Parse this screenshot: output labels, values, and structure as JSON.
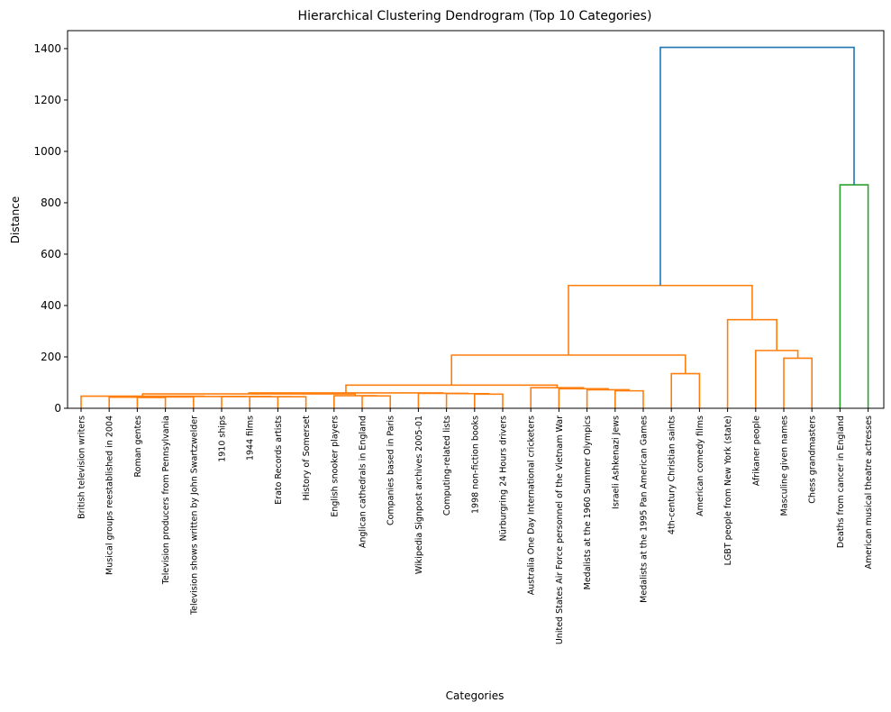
{
  "chart_data": {
    "type": "dendrogram",
    "title": "Hierarchical Clustering Dendrogram (Top 10 Categories)",
    "xlabel": "Categories",
    "ylabel": "Distance",
    "ylim": [
      0,
      1470
    ],
    "yticks": [
      0,
      200,
      400,
      600,
      800,
      1000,
      1200,
      1400
    ],
    "grid": false,
    "leaves": [
      "British television writers",
      "Musical groups reestablished in 2004",
      "Roman gentes",
      "Television producers from Pennsylvania",
      "Television shows written by John Swartzwelder",
      "1910 ships",
      "1944 films",
      "Erato Records artists",
      "History of Somerset",
      "English snooker players",
      "Anglican cathedrals in England",
      "Companies based in Paris",
      "Wikipedia Signpost archives 2005-01",
      "Computing-related lists",
      "1998 non-fiction books",
      "Nürburgring 24 Hours drivers",
      "Australia One Day International cricketers",
      "United States Air Force personnel of the Vietnam War",
      "Medalists at the 1960 Summer Olympics",
      "Israeli Ashkenazi Jews",
      "Medalists at the 1995 Pan American Games",
      "4th-century Christian saints",
      "American comedy films",
      "LGBT people from New York (state)",
      "Afrikaner people",
      "Masculine given names",
      "Chess grandmasters",
      "Deaths from cancer in England",
      "American musical theatre actresses"
    ],
    "merges": [
      {
        "left": 2,
        "right": 3,
        "height": 42,
        "color": "#ff7f0e"
      },
      {
        "left": 1,
        "right": 29,
        "height": 43,
        "color": "#ff7f0e"
      },
      {
        "left": 4,
        "right": 30,
        "height": 44,
        "color": "#ff7f0e"
      },
      {
        "left": 7,
        "right": 8,
        "height": 45,
        "color": "#ff7f0e"
      },
      {
        "left": 6,
        "right": 32,
        "height": 45,
        "color": "#ff7f0e"
      },
      {
        "left": 5,
        "right": 33,
        "height": 46,
        "color": "#ff7f0e"
      },
      {
        "left": 31,
        "right": 34,
        "height": 46,
        "color": "#ff7f0e"
      },
      {
        "left": 0,
        "right": 35,
        "height": 47,
        "color": "#ff7f0e"
      },
      {
        "left": 10,
        "right": 11,
        "height": 48,
        "color": "#ff7f0e"
      },
      {
        "left": 9,
        "right": 37,
        "height": 49,
        "color": "#ff7f0e"
      },
      {
        "left": 36,
        "right": 38,
        "height": 56,
        "color": "#ff7f0e"
      },
      {
        "left": 14,
        "right": 15,
        "height": 55,
        "color": "#ff7f0e"
      },
      {
        "left": 13,
        "right": 40,
        "height": 57,
        "color": "#ff7f0e"
      },
      {
        "left": 12,
        "right": 41,
        "height": 58,
        "color": "#ff7f0e"
      },
      {
        "left": 39,
        "right": 42,
        "height": 60,
        "color": "#ff7f0e"
      },
      {
        "left": 19,
        "right": 20,
        "height": 68,
        "color": "#ff7f0e"
      },
      {
        "left": 18,
        "right": 44,
        "height": 72,
        "color": "#ff7f0e"
      },
      {
        "left": 17,
        "right": 45,
        "height": 76,
        "color": "#ff7f0e"
      },
      {
        "left": 16,
        "right": 46,
        "height": 80,
        "color": "#ff7f0e"
      },
      {
        "left": 43,
        "right": 47,
        "height": 90,
        "color": "#ff7f0e"
      },
      {
        "left": 21,
        "right": 22,
        "height": 135,
        "color": "#ff7f0e"
      },
      {
        "left": 48,
        "right": 49,
        "height": 207,
        "color": "#ff7f0e"
      },
      {
        "left": 25,
        "right": 26,
        "height": 195,
        "color": "#ff7f0e"
      },
      {
        "left": 24,
        "right": 51,
        "height": 225,
        "color": "#ff7f0e"
      },
      {
        "left": 23,
        "right": 52,
        "height": 345,
        "color": "#ff7f0e"
      },
      {
        "left": 50,
        "right": 53,
        "height": 478,
        "color": "#ff7f0e"
      },
      {
        "left": 27,
        "right": 28,
        "height": 870,
        "color": "#2ca02c"
      },
      {
        "left": 54,
        "right": 55,
        "height": 1405,
        "color": "#1f77b4"
      }
    ]
  }
}
